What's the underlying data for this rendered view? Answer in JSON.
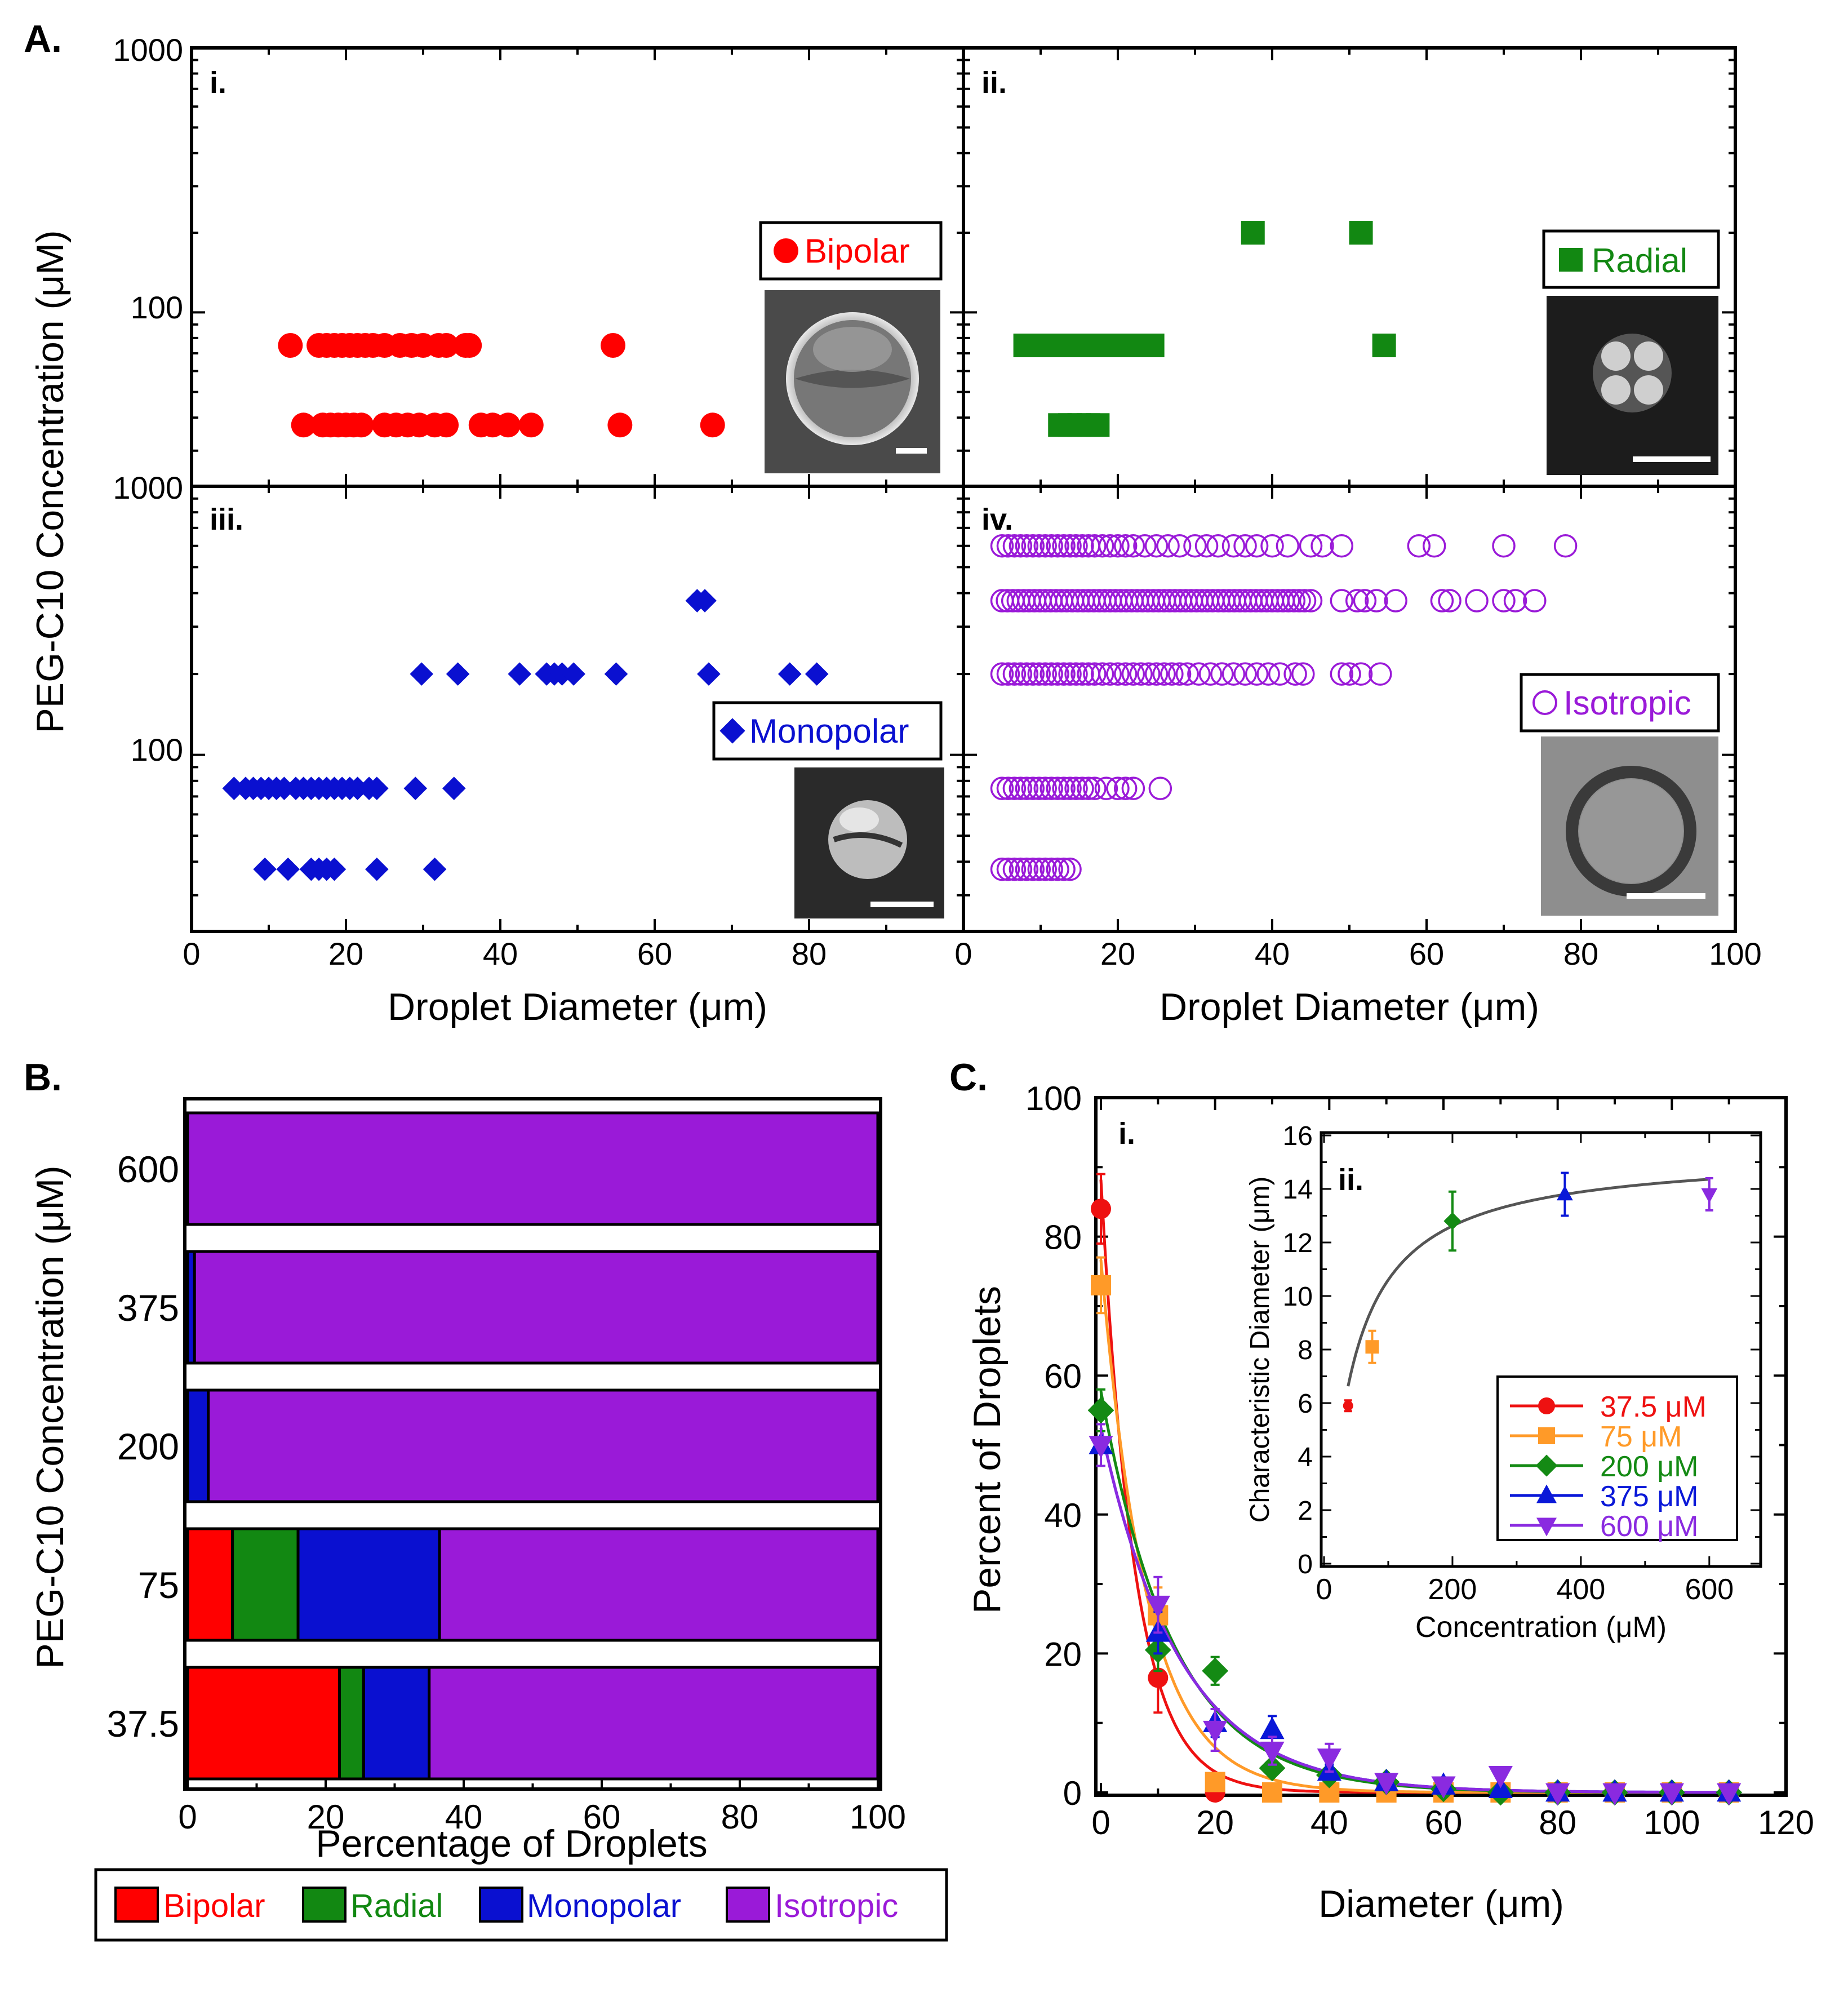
{
  "colors": {
    "bipolar": "#ff0000",
    "radial": "#128812",
    "monopolar": "#0a10d0",
    "isotropic": "#9a1ad8",
    "c37": "#ee1111",
    "c75": "#ff9a28",
    "c200": "#148a14",
    "c375": "#0a18d8",
    "c600": "#8a2ae0",
    "fit": "#555555"
  },
  "panelA": {
    "letter": "A.",
    "ylabel": "PEG-C10 Concentration (μM)",
    "xlabel_left": "Droplet Diameter (μm)",
    "xlabel_right": "Droplet Diameter (μm)",
    "x_ticks_left": [
      "0",
      "20",
      "40",
      "60",
      "80"
    ],
    "x_ticks_right": [
      "0",
      "20",
      "40",
      "60",
      "80",
      "100"
    ],
    "top_ylabels": [
      "1000",
      "100"
    ],
    "bottom_ylabels": [
      "1000",
      "100"
    ],
    "sub_i": "i.",
    "sub_ii": "ii.",
    "sub_iii": "iii.",
    "sub_iv": "iv.",
    "legend_i": "Bipolar",
    "legend_ii": "Radial",
    "legend_iii": "Monopolar",
    "legend_iv": "Isotropic"
  },
  "panelB": {
    "letter": "B.",
    "ylabel": "PEG-C10 Concentration (μM)",
    "xlabel": "Percentage of Droplets",
    "x_ticks": [
      "0",
      "20",
      "40",
      "60",
      "80",
      "100"
    ],
    "legend": [
      "Bipolar",
      "Radial",
      "Monopolar",
      "Isotropic"
    ]
  },
  "panelC": {
    "letter": "C.",
    "sub_i": "i.",
    "sub_ii": "ii.",
    "ylabel": "Percent of Droplets",
    "xlabel": "Diameter (μm)",
    "x_ticks": [
      "0",
      "20",
      "40",
      "60",
      "80",
      "100",
      "120"
    ],
    "y_ticks": [
      "0",
      "20",
      "40",
      "60",
      "80",
      "100"
    ],
    "inset_ylabel": "Characteristic Diameter (μm)",
    "inset_xlabel": "Concentration (μM)",
    "inset_x_ticks": [
      "0",
      "200",
      "400",
      "600"
    ],
    "inset_y_ticks": [
      "0",
      "2",
      "4",
      "6",
      "8",
      "10",
      "12",
      "14",
      "16"
    ],
    "legend": [
      "37.5 μM",
      "75 μM",
      "200 μM",
      "375 μM",
      "600 μM"
    ]
  },
  "chart_data": [
    {
      "type": "scatter",
      "title": "A.i Bipolar",
      "xlabel": "Droplet Diameter (μm)",
      "ylabel": "PEG-C10 Concentration (μM)",
      "xlim": [
        0,
        100
      ],
      "yscale": "log",
      "ylim": [
        22,
        1000
      ],
      "series": [
        {
          "name": "Bipolar",
          "marker": "circle",
          "points": [
            [
              12.8,
              75
            ],
            [
              16.5,
              75
            ],
            [
              17.5,
              75
            ],
            [
              18.5,
              75
            ],
            [
              19.5,
              75
            ],
            [
              20.5,
              75
            ],
            [
              21.5,
              75
            ],
            [
              22.5,
              75
            ],
            [
              23.5,
              75
            ],
            [
              25,
              75
            ],
            [
              27,
              75
            ],
            [
              28.5,
              75
            ],
            [
              30,
              75
            ],
            [
              32,
              75
            ],
            [
              33,
              75
            ],
            [
              35.5,
              75
            ],
            [
              36,
              75
            ],
            [
              54.6,
              75
            ],
            [
              14.5,
              37.5
            ],
            [
              17,
              37.5
            ],
            [
              18,
              37.5
            ],
            [
              19,
              37.5
            ],
            [
              20,
              37.5
            ],
            [
              21,
              37.5
            ],
            [
              22,
              37.5
            ],
            [
              25,
              37.5
            ],
            [
              26.5,
              37.5
            ],
            [
              28,
              37.5
            ],
            [
              29.5,
              37.5
            ],
            [
              31.5,
              37.5
            ],
            [
              33,
              37.5
            ],
            [
              37.5,
              37.5
            ],
            [
              39,
              37.5
            ],
            [
              41,
              37.5
            ],
            [
              44,
              37.5
            ],
            [
              55.5,
              37.5
            ],
            [
              67.5,
              37.5
            ]
          ]
        }
      ]
    },
    {
      "type": "scatter",
      "title": "A.ii Radial",
      "xlabel": "Droplet Diameter (μm)",
      "xlim": [
        0,
        100
      ],
      "yscale": "log",
      "ylim": [
        22,
        1000
      ],
      "series": [
        {
          "name": "Radial",
          "marker": "square",
          "points": [
            [
              37.5,
              200
            ],
            [
              51.5,
              200
            ],
            [
              8,
              75
            ],
            [
              9.5,
              75
            ],
            [
              11,
              75
            ],
            [
              12.5,
              75
            ],
            [
              14,
              75
            ],
            [
              15.5,
              75
            ],
            [
              17,
              75
            ],
            [
              18.5,
              75
            ],
            [
              20,
              75
            ],
            [
              21.5,
              75
            ],
            [
              23,
              75
            ],
            [
              24.5,
              75
            ],
            [
              54.5,
              75
            ],
            [
              12.5,
              37.5
            ],
            [
              13.8,
              37.5
            ],
            [
              15,
              37.5
            ],
            [
              16.2,
              37.5
            ],
            [
              17.4,
              37.5
            ]
          ]
        }
      ]
    },
    {
      "type": "scatter",
      "title": "A.iii Monopolar",
      "xlabel": "Droplet Diameter (μm)",
      "xlim": [
        0,
        100
      ],
      "yscale": "log",
      "ylim": [
        22,
        1000
      ],
      "series": [
        {
          "name": "Monopolar",
          "marker": "diamond",
          "points": [
            [
              65.5,
              375
            ],
            [
              66.5,
              375
            ],
            [
              29.8,
              200
            ],
            [
              34.5,
              200
            ],
            [
              42.5,
              200
            ],
            [
              46,
              200
            ],
            [
              47,
              200
            ],
            [
              48,
              200
            ],
            [
              49.5,
              200
            ],
            [
              55,
              200
            ],
            [
              67,
              200
            ],
            [
              77.5,
              200
            ],
            [
              81,
              200
            ],
            [
              5.5,
              75
            ],
            [
              7,
              75
            ],
            [
              8,
              75
            ],
            [
              9,
              75
            ],
            [
              10,
              75
            ],
            [
              11,
              75
            ],
            [
              12,
              75
            ],
            [
              13.5,
              75
            ],
            [
              14.5,
              75
            ],
            [
              15.5,
              75
            ],
            [
              16.5,
              75
            ],
            [
              17.5,
              75
            ],
            [
              18.5,
              75
            ],
            [
              19.5,
              75
            ],
            [
              20.5,
              75
            ],
            [
              21.5,
              75
            ],
            [
              23,
              75
            ],
            [
              24,
              75
            ],
            [
              29,
              75
            ],
            [
              34,
              75
            ],
            [
              9.5,
              37.5
            ],
            [
              12.5,
              37.5
            ],
            [
              15.5,
              37.5
            ],
            [
              16.5,
              37.5
            ],
            [
              17.5,
              37.5
            ],
            [
              18.5,
              37.5
            ],
            [
              24,
              37.5
            ],
            [
              31.5,
              37.5
            ]
          ]
        }
      ]
    },
    {
      "type": "scatter",
      "title": "A.iv Isotropic",
      "xlabel": "Droplet Diameter (μm)",
      "xlim": [
        0,
        100
      ],
      "yscale": "log",
      "ylim": [
        22,
        1000
      ],
      "series": [
        {
          "name": "Isotropic",
          "marker": "open-circle",
          "rows": [
            {
              "y": 600,
              "x": [
                5,
                5.8,
                6.6,
                7.4,
                8.2,
                9,
                9.8,
                10.6,
                11.4,
                12.2,
                13,
                13.8,
                14.6,
                15.4,
                16.2,
                17,
                18,
                19,
                20,
                21,
                22,
                23.5,
                25,
                26.5,
                28,
                30,
                31.5,
                33,
                35,
                36.5,
                38,
                40,
                42,
                45,
                46.5,
                49,
                59,
                61,
                70,
                78
              ]
            },
            {
              "y": 375,
              "x": [
                5,
                5.7,
                6.4,
                7.1,
                7.8,
                8.5,
                9.2,
                9.9,
                10.6,
                11.3,
                12,
                12.7,
                13.4,
                14.1,
                14.8,
                15.5,
                16.2,
                16.9,
                17.6,
                18.3,
                19,
                19.7,
                20.4,
                21.1,
                21.8,
                22.5,
                23.2,
                23.9,
                24.6,
                25.3,
                26,
                26.7,
                27.4,
                28.1,
                28.8,
                29.5,
                30.2,
                30.9,
                31.6,
                32.3,
                33,
                33.7,
                34.4,
                35.1,
                35.8,
                36.5,
                37.2,
                37.9,
                38.6,
                39.3,
                40,
                40.7,
                41.4,
                42.1,
                42.8,
                43.5,
                44.2,
                45,
                49,
                51,
                52,
                53.5,
                56,
                62,
                63,
                66.5,
                70,
                71.5,
                74
              ]
            },
            {
              "y": 200,
              "x": [
                5,
                5.8,
                6.6,
                7.4,
                8.2,
                9,
                9.8,
                10.6,
                11.4,
                12.2,
                13,
                13.8,
                14.6,
                15.4,
                16.2,
                17,
                18,
                19,
                20,
                21,
                22,
                23,
                24,
                25,
                26,
                27,
                28,
                29,
                30.5,
                32,
                33.5,
                35,
                36.5,
                38,
                39.5,
                41,
                43,
                44,
                49,
                50,
                51.5,
                54
              ]
            },
            {
              "y": 75,
              "x": [
                5,
                5.8,
                6.6,
                7.4,
                8.2,
                9,
                9.8,
                10.6,
                11.4,
                12.2,
                13,
                13.8,
                14.6,
                15.4,
                16.2,
                17,
                18.5,
                20,
                21,
                22,
                25.5
              ]
            },
            {
              "y": 37.5,
              "x": [
                5,
                5.8,
                6.6,
                7.4,
                8.2,
                9,
                9.8,
                10.6,
                11.4,
                12.2,
                13,
                13.8
              ]
            }
          ]
        }
      ]
    },
    {
      "type": "bar",
      "orientation": "horizontal-stacked",
      "title": "B",
      "xlabel": "Percentage of Droplets",
      "ylabel": "PEG-C10 Concentration (μM)",
      "xlim": [
        0,
        100
      ],
      "categories": [
        "600",
        "375",
        "200",
        "75",
        "37.5"
      ],
      "series": [
        {
          "name": "Bipolar",
          "values": [
            0,
            0,
            0,
            6.5,
            22
          ]
        },
        {
          "name": "Radial",
          "values": [
            0,
            0,
            0,
            9.5,
            3.5
          ]
        },
        {
          "name": "Monopolar",
          "values": [
            0,
            1,
            3,
            20.5,
            9.5
          ]
        },
        {
          "name": "Isotropic",
          "values": [
            100,
            99,
            97,
            63.5,
            65
          ]
        }
      ]
    },
    {
      "type": "line",
      "title": "C.i",
      "xlabel": "Diameter (μm)",
      "ylabel": "Percent of Droplets",
      "xlim": [
        0,
        120
      ],
      "ylim": [
        0,
        100
      ],
      "x": [
        0,
        10,
        20,
        30,
        40,
        50,
        60,
        70,
        80,
        90,
        100,
        110
      ],
      "series": [
        {
          "name": "37.5 μM",
          "marker": "circle",
          "values": [
            84,
            16.5,
            0,
            0,
            0,
            0,
            0,
            0,
            0,
            0,
            0,
            0
          ],
          "errors": [
            5,
            5,
            0,
            0,
            0,
            0,
            0,
            0,
            0,
            0,
            0,
            0
          ],
          "fit_tau": 5.9
        },
        {
          "name": "75 μM",
          "marker": "square",
          "values": [
            73,
            25.5,
            1.5,
            0,
            0,
            0,
            0,
            0,
            0,
            0,
            0,
            0
          ],
          "errors": [
            4,
            4,
            0,
            0,
            0,
            0,
            0,
            0,
            0,
            0,
            0,
            0
          ],
          "fit_tau": 8.1
        },
        {
          "name": "200 μM",
          "marker": "diamond",
          "values": [
            55,
            20.5,
            17.5,
            3.5,
            2.5,
            1.5,
            0.5,
            0,
            0,
            0,
            0,
            0
          ],
          "errors": [
            3,
            3,
            2,
            1,
            1,
            0.5,
            0.5,
            0,
            0,
            0,
            0,
            0
          ],
          "fit_tau": 12.8
        },
        {
          "name": "375 μM",
          "marker": "triangle-up",
          "values": [
            50,
            23,
            10,
            9,
            3,
            1.5,
            1,
            0.5,
            0,
            0,
            0,
            0
          ],
          "errors": [
            3,
            3,
            2,
            2,
            1,
            0.5,
            0.5,
            0.3,
            0,
            0,
            0,
            0
          ],
          "fit_tau": 13.8
        },
        {
          "name": "600 μM",
          "marker": "triangle-down",
          "values": [
            50,
            27,
            9,
            6,
            5,
            1.5,
            1,
            2.5,
            0,
            0,
            0,
            0
          ],
          "errors": [
            3,
            4,
            3,
            2,
            2,
            0.5,
            0.5,
            0.5,
            0,
            0,
            0,
            0
          ],
          "fit_tau": 13.8
        }
      ]
    },
    {
      "type": "scatter",
      "title": "C.ii",
      "xlabel": "Concentration (μM)",
      "ylabel": "Characteristic Diameter (μm)",
      "xlim": [
        0,
        680
      ],
      "ylim": [
        0,
        16
      ],
      "points": [
        {
          "x": 37.5,
          "y": 5.9,
          "err": 0.2,
          "name": "37.5 μM"
        },
        {
          "x": 75,
          "y": 8.1,
          "err": 0.6,
          "name": "75 μM"
        },
        {
          "x": 200,
          "y": 12.8,
          "err": 1.1,
          "name": "200 μM"
        },
        {
          "x": 375,
          "y": 13.8,
          "err": 0.8,
          "name": "375 μM"
        },
        {
          "x": 600,
          "y": 13.8,
          "err": 0.6,
          "name": "600 μM"
        }
      ],
      "fit": {
        "type": "saturation",
        "xmin": 37.5,
        "xmax": 600
      }
    }
  ]
}
